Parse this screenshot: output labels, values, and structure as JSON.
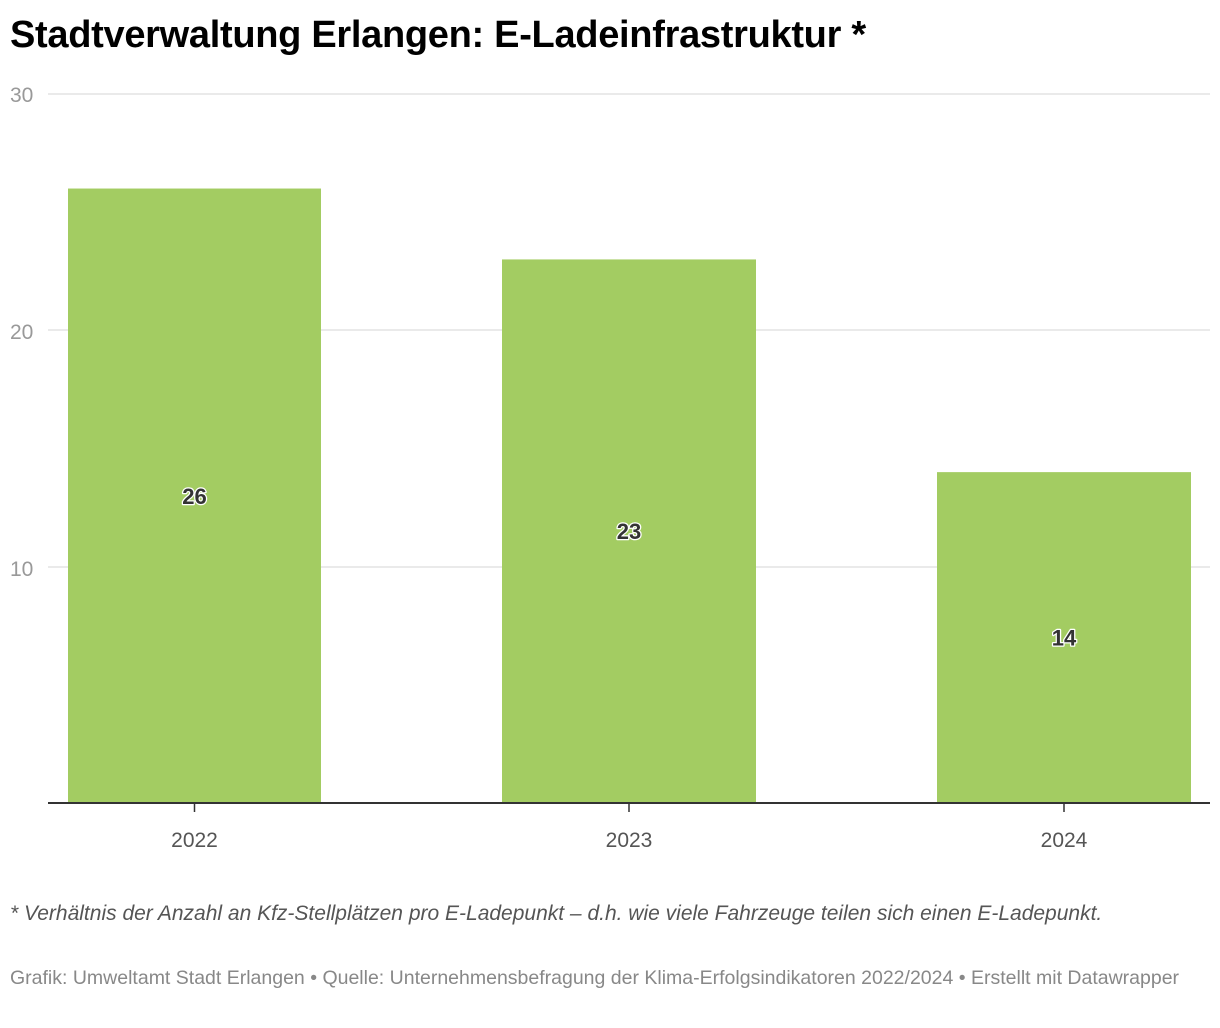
{
  "title": "Stadtverwaltung Erlangen: E-Ladeinfrastruktur *",
  "chart_data": {
    "type": "bar",
    "categories": [
      "2022",
      "2023",
      "2024"
    ],
    "values": [
      26,
      23,
      14
    ],
    "value_labels": [
      "26",
      "23",
      "14"
    ],
    "yticks": [
      10,
      20,
      30
    ],
    "ytick_labels": [
      "10",
      "20",
      "30"
    ],
    "ylim": [
      0,
      30
    ],
    "grid": true,
    "bar_color": "#a3cc62"
  },
  "footnote": "* Verhältnis der Anzahl an Kfz-Stellplätzen pro E-Ladepunkt – d.h. wie viele Fahrzeuge teilen sich einen E-Ladepunkt.",
  "credits": "Grafik: Umweltamt Stadt Erlangen • Quelle: Unternehmensbefragung der Klima-Erfolgsindikatoren 2022/2024 • Erstellt mit Datawrapper"
}
